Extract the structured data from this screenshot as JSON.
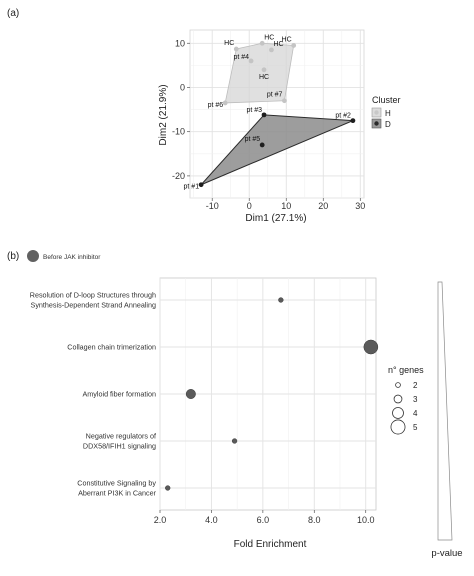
{
  "panel_a_label": "(a)",
  "panel_b_label": "(b)",
  "chart_data": [
    {
      "type": "scatter",
      "xlabel": "Dim1 (27.1%)",
      "ylabel": "Dim2 (21.9%)",
      "xlim": [
        -16,
        31
      ],
      "ylim": [
        -25,
        13
      ],
      "xticks": [
        -10,
        0,
        10,
        20,
        30
      ],
      "yticks": [
        -20,
        -10,
        0,
        10
      ],
      "grid": true,
      "legend": {
        "title": "Cluster",
        "position": "right",
        "entries": [
          {
            "key": "H",
            "label": "H",
            "color": "#c8c8c8"
          },
          {
            "key": "D",
            "label": "D",
            "color": "#2b2b2b"
          }
        ]
      },
      "points": [
        {
          "x": -3.5,
          "y": 8.7,
          "label": "HC",
          "cluster": "H"
        },
        {
          "x": 3.5,
          "y": 10.0,
          "label": "HC",
          "cluster": "H"
        },
        {
          "x": 6.0,
          "y": 8.5,
          "label": "HC",
          "cluster": "H"
        },
        {
          "x": 12.0,
          "y": 9.5,
          "label": "HC",
          "cluster": "H"
        },
        {
          "x": 4.0,
          "y": 4.0,
          "label": "HC",
          "cluster": "H"
        },
        {
          "x": 0.5,
          "y": 6.0,
          "label": "pt #4",
          "cluster": "H"
        },
        {
          "x": 9.5,
          "y": -3.0,
          "label": "pt #7",
          "cluster": "H"
        },
        {
          "x": -6.5,
          "y": -3.5,
          "label": "pt #6",
          "cluster": "H"
        },
        {
          "x": 28.0,
          "y": -7.5,
          "label": "pt #2",
          "cluster": "D"
        },
        {
          "x": 4.0,
          "y": -6.2,
          "label": "pt #3",
          "cluster": "D"
        },
        {
          "x": 3.5,
          "y": -13.0,
          "label": "pt #5",
          "cluster": "D"
        },
        {
          "x": -13.0,
          "y": -22.0,
          "label": "pt #1",
          "cluster": "D"
        }
      ],
      "hulls": [
        {
          "cluster": "H",
          "order": [
            "pt #6",
            "HC",
            "HC",
            "HC",
            "pt #7"
          ]
        },
        {
          "cluster": "D",
          "order": [
            "pt #1",
            "pt #3",
            "pt #2"
          ]
        }
      ]
    },
    {
      "type": "scatter",
      "xlabel": "Fold Enrichment",
      "xlim": [
        2.0,
        10.4
      ],
      "xticks": [
        "2.0",
        "4.0",
        "6.0",
        "8.0",
        "10.0"
      ],
      "grid": true,
      "series_name": "Before JAK inhibitor",
      "categories": [
        [
          "Resolution of D-loop Structures through",
          "Synthesis-Dependent Strand Annealing"
        ],
        [
          "Collagen chain trimerization"
        ],
        [
          "Amyloid fiber formation"
        ],
        [
          "Negative regulators of",
          "DDX58/IFIH1 signaling"
        ],
        [
          "Constitutive Signaling by",
          "Aberrant PI3K in Cancer"
        ]
      ],
      "points": [
        {
          "x": 6.7,
          "genes": 2
        },
        {
          "x": 10.2,
          "genes": 5
        },
        {
          "x": 3.2,
          "genes": 3.5
        },
        {
          "x": 4.9,
          "genes": 2
        },
        {
          "x": 2.3,
          "genes": 2
        }
      ],
      "size_legend": {
        "title": "n° genes",
        "values": [
          "2",
          "3",
          "4",
          "5"
        ]
      },
      "pvalue_label": "p-value"
    }
  ]
}
